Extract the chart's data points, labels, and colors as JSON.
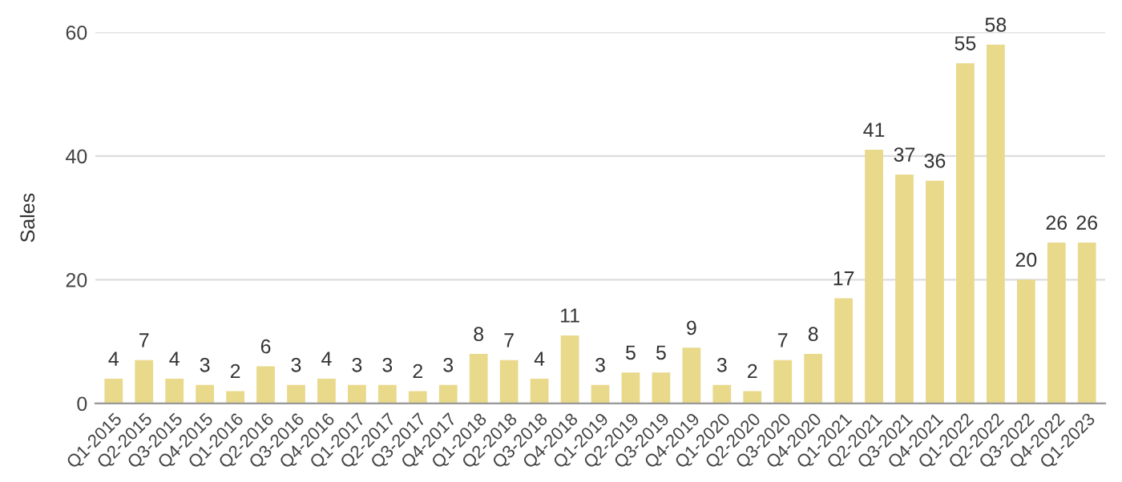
{
  "chart_data": {
    "type": "bar",
    "ylabel": "Sales",
    "categories": [
      "Q1-2015",
      "Q2-2015",
      "Q3-2015",
      "Q4-2015",
      "Q1-2016",
      "Q2-2016",
      "Q3-2016",
      "Q4-2016",
      "Q1-2017",
      "Q2-2017",
      "Q3-2017",
      "Q4-2017",
      "Q1-2018",
      "Q2-2018",
      "Q3-2018",
      "Q4-2018",
      "Q1-2019",
      "Q2-2019",
      "Q3-2019",
      "Q4-2019",
      "Q1-2020",
      "Q2-2020",
      "Q3-2020",
      "Q4-2020",
      "Q1-2021",
      "Q2-2021",
      "Q3-2021",
      "Q4-2021",
      "Q1-2022",
      "Q2-2022",
      "Q3-2022",
      "Q4-2022",
      "Q1-2023"
    ],
    "values": [
      4,
      7,
      4,
      3,
      2,
      6,
      3,
      4,
      3,
      3,
      2,
      3,
      8,
      7,
      4,
      11,
      3,
      5,
      5,
      9,
      3,
      2,
      7,
      8,
      17,
      41,
      37,
      36,
      55,
      58,
      20,
      26,
      26
    ],
    "color": "#e9d98b",
    "ylim": [
      0,
      60
    ],
    "yticks": [
      0,
      20,
      40,
      60
    ],
    "grid": "y",
    "data_labels": true
  }
}
